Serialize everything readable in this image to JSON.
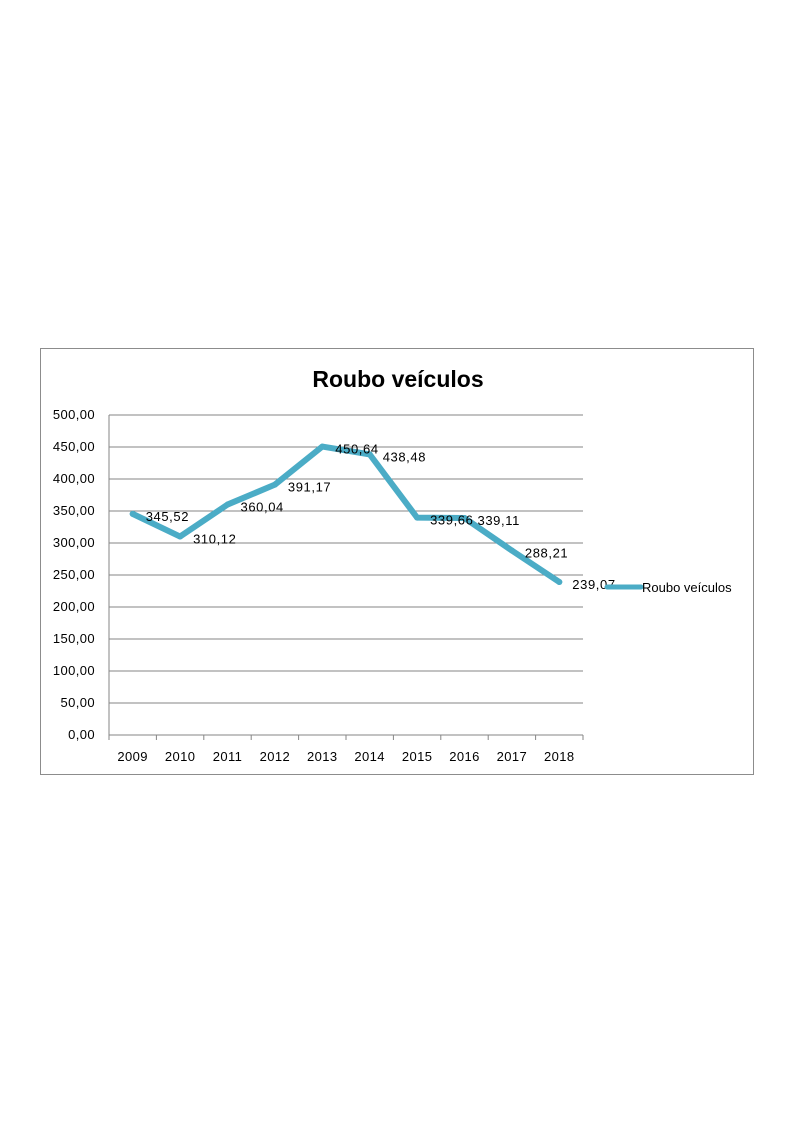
{
  "chart_data": {
    "type": "line",
    "title": "Roubo veículos",
    "categories": [
      "2009",
      "2010",
      "2011",
      "2012",
      "2013",
      "2014",
      "2015",
      "2016",
      "2017",
      "2018"
    ],
    "series": [
      {
        "name": "Roubo veículos",
        "values": [
          345.52,
          310.12,
          360.04,
          391.17,
          450.64,
          438.48,
          339.66,
          339.11,
          288.21,
          239.07
        ],
        "labels": [
          "345,52",
          "310,12",
          "360,04",
          "391,17",
          "450,64",
          "438,48",
          "339,66",
          "339,11",
          "288,21",
          "239,07"
        ]
      }
    ],
    "y_ticks": [
      "0,00",
      "50,00",
      "100,00",
      "150,00",
      "200,00",
      "250,00",
      "300,00",
      "350,00",
      "400,00",
      "450,00",
      "500,00"
    ],
    "ylim": [
      0,
      500
    ],
    "grid": true,
    "legend_position": "right",
    "line_color": "#4bacc6"
  }
}
